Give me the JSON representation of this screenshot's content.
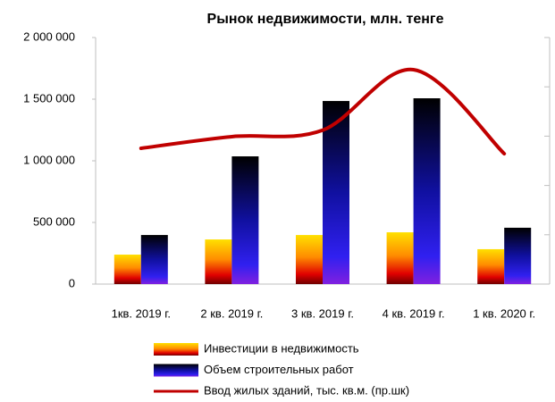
{
  "chart_data": {
    "type": "bar-line",
    "title": "Рынок недвижимости, млн. тенге",
    "categories": [
      "1кв. 2019 г.",
      "2 кв. 2019 г.",
      "3 кв. 2019 г.",
      "4 кв. 2019 г.",
      "1 кв. 2020 г."
    ],
    "series": [
      {
        "name": "Инвестиции в недвижимость",
        "type": "bar",
        "values": [
          239000,
          362000,
          398000,
          420000,
          283000
        ]
      },
      {
        "name": "Объем строительных работ",
        "type": "bar",
        "values": [
          398000,
          1036000,
          1485000,
          1507000,
          457000
        ]
      },
      {
        "name": "Ввод жилых зданий, тыс. кв.м. (пр.шк)",
        "type": "line",
        "axis": "y2",
        "color": "#c00000",
        "values": [
          1377,
          1495,
          1560,
          2174,
          1322
        ]
      }
    ],
    "ylim": [
      0,
      2000000
    ],
    "yticks": [
      0,
      {
        "value": 500000,
        "label": "500 000"
      },
      {
        "value": 1000000,
        "label": "1 000 000"
      },
      {
        "value": 1500000,
        "label": "1 500 000"
      },
      {
        "value": 2000000,
        "label": "2 000 000"
      }
    ],
    "y2lim": [
      0,
      2500
    ],
    "y2ticks": [
      0,
      500,
      1000,
      1500,
      2000,
      2500
    ],
    "legend": "bottom"
  }
}
